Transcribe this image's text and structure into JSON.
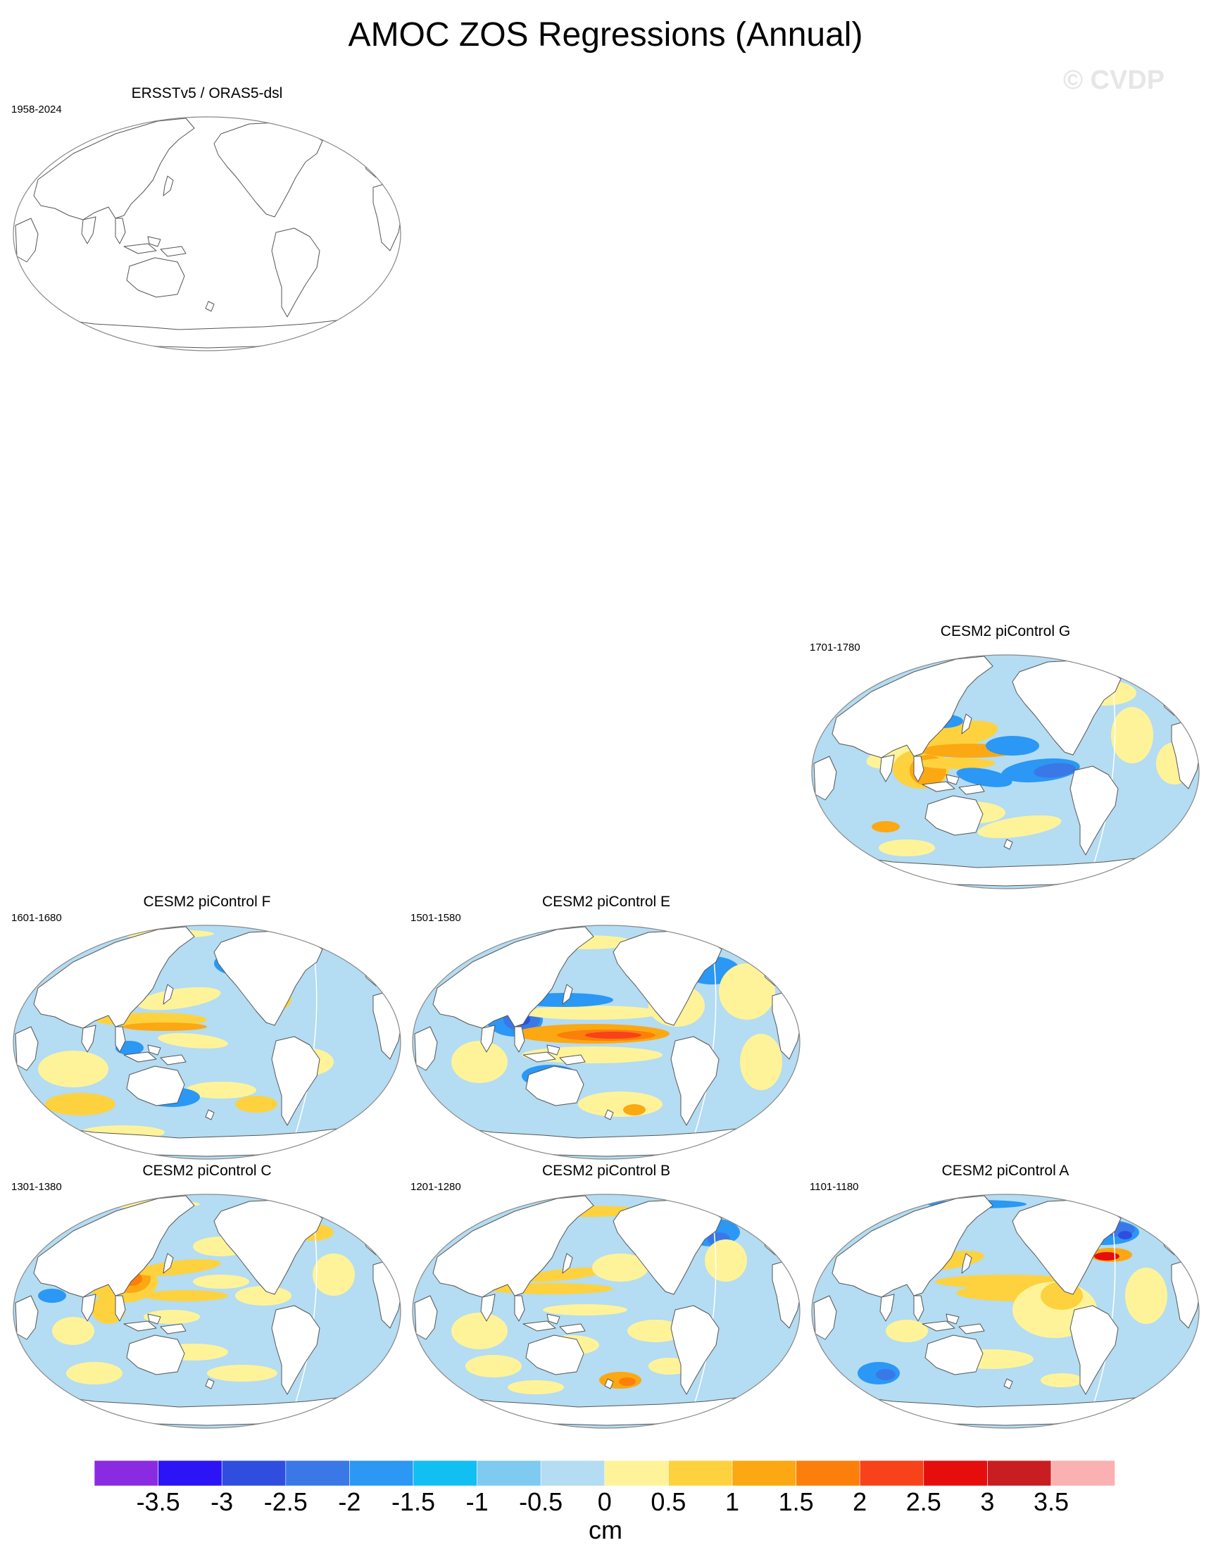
{
  "title": "AMOC ZOS Regressions (Annual)",
  "watermark": "© CVDP",
  "panels": [
    {
      "id": "obs",
      "title": "ERSSTv5 / ORAS5-dsl",
      "years": "1958-2024",
      "filled": false
    },
    {
      "id": "G",
      "title": "CESM2 piControl G",
      "years": "1701-1780",
      "filled": true
    },
    {
      "id": "F",
      "title": "CESM2 piControl F",
      "years": "1601-1680",
      "filled": true
    },
    {
      "id": "E",
      "title": "CESM2 piControl E",
      "years": "1501-1580",
      "filled": true
    },
    {
      "id": "C",
      "title": "CESM2 piControl C",
      "years": "1301-1380",
      "filled": true
    },
    {
      "id": "B",
      "title": "CESM2 piControl B",
      "years": "1201-1280",
      "filled": true
    },
    {
      "id": "A",
      "title": "CESM2 piControl A",
      "years": "1101-1180",
      "filled": true
    }
  ],
  "colorbar": {
    "unit": "cm",
    "labels": [
      "-3.5",
      "-3",
      "-2.5",
      "-2",
      "-1.5",
      "-1",
      "-0.5",
      "0",
      "0.5",
      "1",
      "1.5",
      "2",
      "2.5",
      "3",
      "3.5"
    ],
    "colors": [
      "#8a2be2",
      "#2b14f5",
      "#2f4ee0",
      "#3a78e8",
      "#2a98f4",
      "#11bff2",
      "#7ecaf0",
      "#b4dcf2",
      "#fff39a",
      "#fdd23e",
      "#fca812",
      "#fb7f0a",
      "#f7421a",
      "#e60d0d",
      "#c81e22",
      "#fbb1b1"
    ]
  }
}
